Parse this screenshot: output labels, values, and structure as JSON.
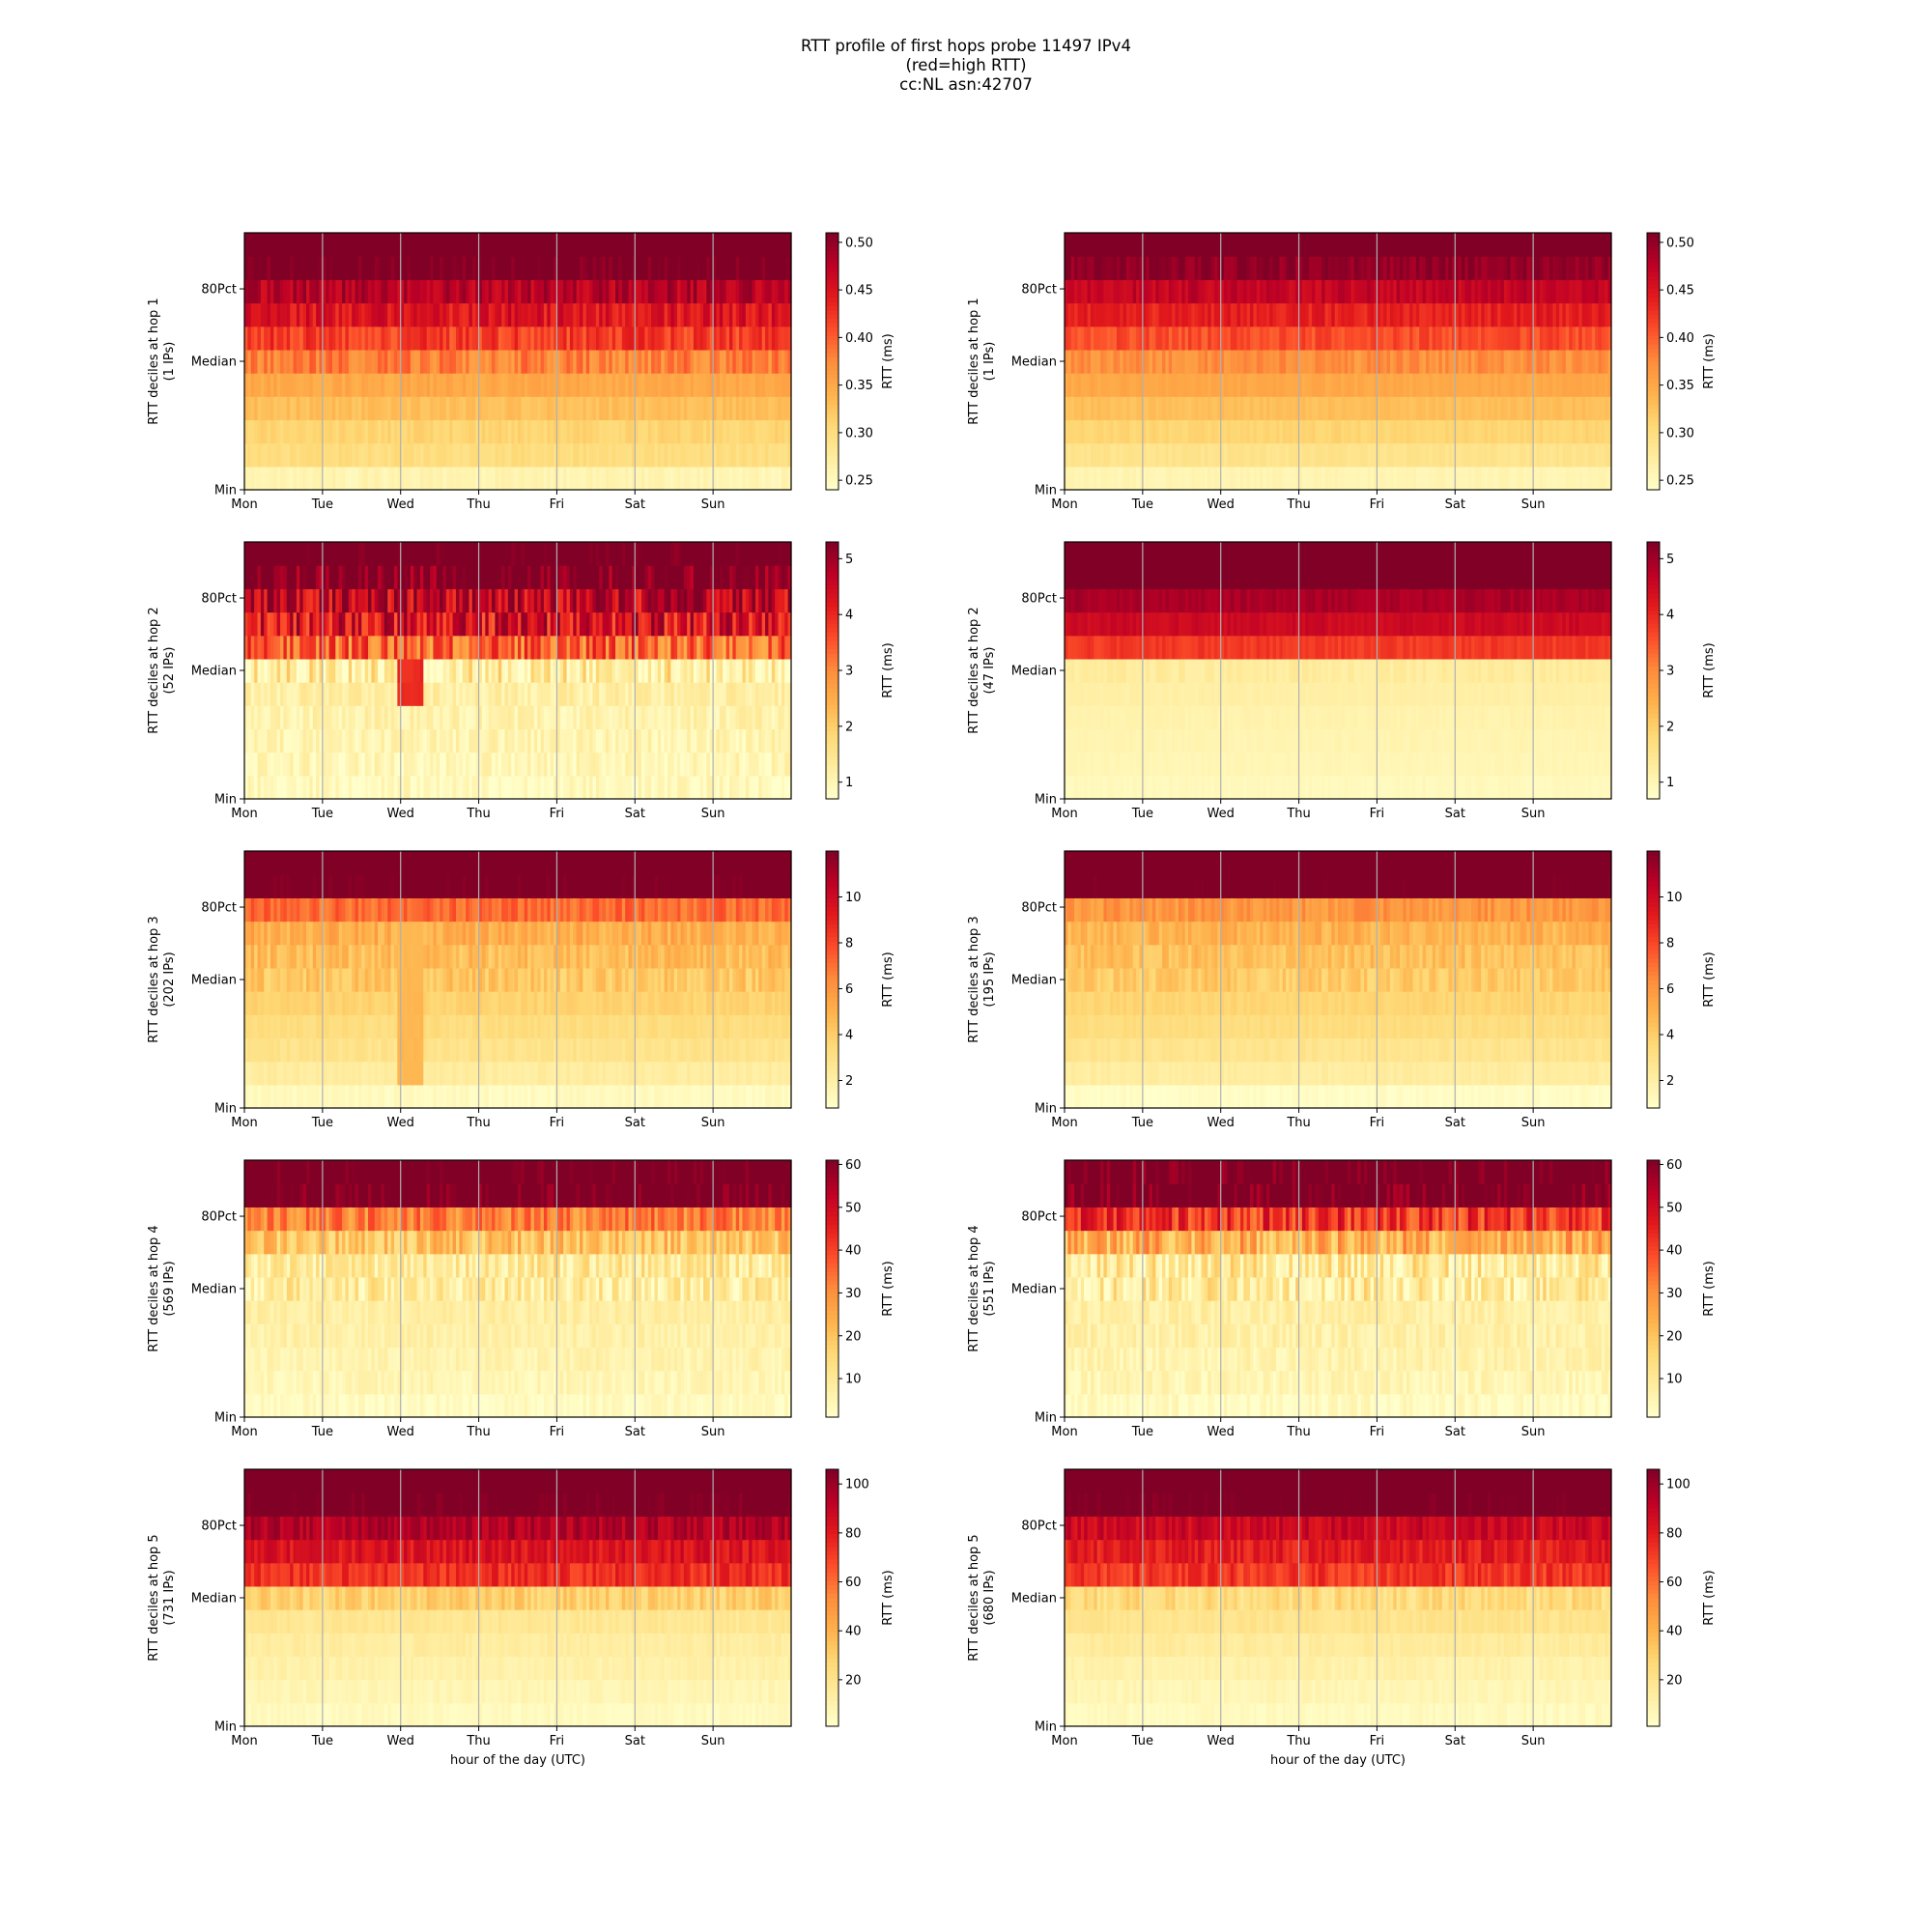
{
  "title": {
    "line1": "RTT profile of first hops probe 11497 IPv4",
    "line2": "(red=high RTT)",
    "line3": "cc:NL asn:42707"
  },
  "chart_data": {
    "type": "heatmap",
    "colormap": "YlOrRd",
    "x_tick_labels": [
      "Mon",
      "Tue",
      "Wed",
      "Thu",
      "Fri",
      "Sat",
      "Sun"
    ],
    "y_tick_labels": [
      "80Pct",
      "Median",
      "Min"
    ],
    "colorbar_label": "RTT (ms)",
    "xlabel": "hour of the day (UTC)",
    "grid": "vertical lines at day boundaries",
    "panels": [
      {
        "ylabel_line1": "RTT deciles at hop 1",
        "ylabel_line2": "(1 IPs)",
        "vmin": 0.24,
        "vmax": 0.51,
        "colorbar_ticks": [
          0.25,
          0.3,
          0.35,
          0.4,
          0.45,
          0.5
        ],
        "decile_levels": [
          0.26,
          0.3,
          0.31,
          0.33,
          0.35,
          0.38,
          0.42,
          0.45,
          0.48,
          0.52,
          0.55
        ],
        "jitter": 0.025,
        "events": [],
        "xlabel_shown": false
      },
      {
        "ylabel_line1": "RTT deciles at hop 1",
        "ylabel_line2": "(1 IPs)",
        "vmin": 0.24,
        "vmax": 0.51,
        "colorbar_ticks": [
          0.25,
          0.3,
          0.35,
          0.4,
          0.45,
          0.5
        ],
        "decile_levels": [
          0.26,
          0.29,
          0.31,
          0.33,
          0.35,
          0.37,
          0.41,
          0.44,
          0.47,
          0.5,
          0.55
        ],
        "jitter": 0.015,
        "events": [],
        "xlabel_shown": false
      },
      {
        "ylabel_line1": "RTT deciles at hop 2",
        "ylabel_line2": "(52 IPs)",
        "vmin": 0.7,
        "vmax": 5.3,
        "colorbar_ticks": [
          1,
          2,
          3,
          4,
          5
        ],
        "decile_levels": [
          0.9,
          1.0,
          1.05,
          1.1,
          1.2,
          1.3,
          3.3,
          4.3,
          4.7,
          5.5,
          6.0
        ],
        "jitter": 0.9,
        "events": [
          {
            "start_day": 1.95,
            "end_day": 2.25,
            "decile_from": 4,
            "decile_to": 5,
            "value": 4.0
          }
        ],
        "xlabel_shown": false
      },
      {
        "ylabel_line1": "RTT deciles at hop 2",
        "ylabel_line2": "(47 IPs)",
        "vmin": 0.7,
        "vmax": 5.3,
        "colorbar_ticks": [
          1,
          2,
          3,
          4,
          5
        ],
        "decile_levels": [
          0.9,
          1.0,
          1.05,
          1.1,
          1.2,
          1.3,
          3.8,
          4.5,
          4.9,
          5.5,
          6.0
        ],
        "jitter": 0.15,
        "events": [],
        "xlabel_shown": false
      },
      {
        "ylabel_line1": "RTT deciles at hop 3",
        "ylabel_line2": "(202 IPs)",
        "vmin": 0.8,
        "vmax": 12.0,
        "colorbar_ticks": [
          2,
          4,
          6,
          8,
          10
        ],
        "decile_levels": [
          1.2,
          2.2,
          2.9,
          3.3,
          3.8,
          4.2,
          4.6,
          5.2,
          7.2,
          12.5,
          13.0
        ],
        "jitter": 0.8,
        "events": [
          {
            "start_day": 1.95,
            "end_day": 2.25,
            "decile_from": 1,
            "decile_to": 7,
            "value": 4.8
          }
        ],
        "xlabel_shown": false
      },
      {
        "ylabel_line1": "RTT deciles at hop 3",
        "ylabel_line2": "(195 IPs)",
        "vmin": 0.8,
        "vmax": 12.0,
        "colorbar_ticks": [
          2,
          4,
          6,
          8,
          10
        ],
        "decile_levels": [
          1.0,
          2.2,
          2.8,
          3.3,
          3.7,
          4.1,
          4.5,
          5.0,
          6.0,
          12.5,
          13.0
        ],
        "jitter": 0.7,
        "events": [],
        "xlabel_shown": false
      },
      {
        "ylabel_line1": "RTT deciles at hop 4",
        "ylabel_line2": "(569 IPs)",
        "vmin": 1.0,
        "vmax": 61.0,
        "colorbar_ticks": [
          10,
          20,
          30,
          40,
          50,
          60
        ],
        "decile_levels": [
          3,
          5,
          6,
          7,
          8,
          9,
          10,
          20,
          32,
          64,
          66
        ],
        "jitter": 8.0,
        "events": [],
        "xlabel_shown": false
      },
      {
        "ylabel_line1": "RTT deciles at hop 4",
        "ylabel_line2": "(551 IPs)",
        "vmin": 1.0,
        "vmax": 61.0,
        "colorbar_ticks": [
          10,
          20,
          30,
          40,
          50,
          60
        ],
        "decile_levels": [
          3,
          5,
          6,
          7,
          8,
          9,
          10,
          24,
          42,
          64,
          66
        ],
        "jitter": 10.0,
        "events": [],
        "xlabel_shown": false
      },
      {
        "ylabel_line1": "RTT deciles at hop 5",
        "ylabel_line2": "(731 IPs)",
        "vmin": 1.0,
        "vmax": 106.0,
        "colorbar_ticks": [
          20,
          40,
          60,
          80,
          100
        ],
        "decile_levels": [
          5,
          8,
          11,
          14,
          18,
          30,
          75,
          83,
          95,
          110,
          115
        ],
        "jitter": 8.0,
        "events": [],
        "xlabel_shown": true
      },
      {
        "ylabel_line1": "RTT deciles at hop 5",
        "ylabel_line2": "(680 IPs)",
        "vmin": 1.0,
        "vmax": 106.0,
        "colorbar_ticks": [
          20,
          40,
          60,
          80,
          100
        ],
        "decile_levels": [
          5,
          8,
          11,
          15,
          20,
          25,
          72,
          80,
          88,
          110,
          115
        ],
        "jitter": 8.0,
        "events": [],
        "xlabel_shown": true
      }
    ]
  }
}
